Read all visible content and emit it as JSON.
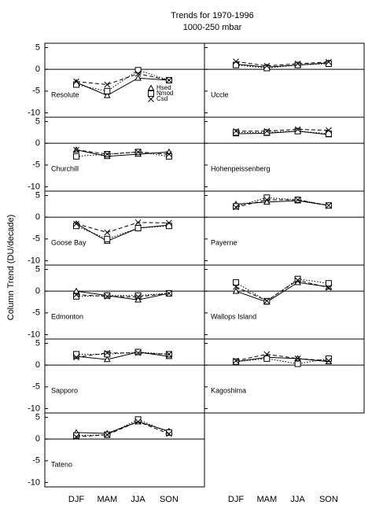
{
  "chart_data": {
    "type": "line",
    "title": "Trends for 1970-1996",
    "subtitle": "1000-250 mbar",
    "y_label": "Column Trend (DU/decade)",
    "categories": [
      "DJF",
      "MAM",
      "JJA",
      "SON"
    ],
    "ylim": [
      -11,
      6
    ],
    "yticks": [
      -10,
      -5,
      0,
      5
    ],
    "color": "#000000",
    "panels": [
      {
        "name": "Resolute",
        "series": [
          {
            "name": "Hsed",
            "values": [
              -3,
              -6,
              -2,
              -2.5
            ]
          },
          {
            "name": "Nmod",
            "values": [
              -3.5,
              -5,
              -0.2,
              -2.5
            ]
          },
          {
            "name": "Csd",
            "values": [
              -2.8,
              -3.5,
              -1,
              -2.5
            ]
          }
        ]
      },
      {
        "name": "Uccle",
        "series": [
          {
            "name": "Hsed",
            "values": [
              1.2,
              0.5,
              1,
              1.5
            ]
          },
          {
            "name": "Nmod",
            "values": [
              1,
              0.3,
              1,
              1.3
            ]
          },
          {
            "name": "Csd",
            "values": [
              1.8,
              0.8,
              1.3,
              1.7
            ]
          }
        ]
      },
      {
        "name": "Churchill",
        "series": [
          {
            "name": "Hsed",
            "values": [
              -1.5,
              -3,
              -2.5,
              -2
            ]
          },
          {
            "name": "Nmod",
            "values": [
              -3,
              -2.5,
              -2,
              -3
            ]
          },
          {
            "name": "Csd",
            "values": [
              -1.5,
              -2.5,
              -2,
              -2.5
            ]
          }
        ]
      },
      {
        "name": "Hohenpeissenberg",
        "series": [
          {
            "name": "Hsed",
            "values": [
              2.2,
              2.3,
              2.8,
              2
            ]
          },
          {
            "name": "Nmod",
            "values": [
              2.5,
              2.5,
              2.8,
              2.2
            ]
          },
          {
            "name": "Csd",
            "values": [
              2.8,
              2.8,
              3.2,
              3
            ]
          }
        ]
      },
      {
        "name": "Goose Bay",
        "series": [
          {
            "name": "Hsed",
            "values": [
              -1.5,
              -5.5,
              -2.5,
              -1.8
            ]
          },
          {
            "name": "Nmod",
            "values": [
              -2,
              -5,
              -2.5,
              -2
            ]
          },
          {
            "name": "Csd",
            "values": [
              -1.5,
              -3.5,
              -1.2,
              -1.3
            ]
          }
        ]
      },
      {
        "name": "Payerne",
        "series": [
          {
            "name": "Hsed",
            "values": [
              3,
              3.5,
              3.8,
              2.7
            ]
          },
          {
            "name": "Nmod",
            "values": [
              2.5,
              4.5,
              4,
              2.7
            ]
          },
          {
            "name": "Csd",
            "values": [
              2.3,
              4,
              4,
              2.7
            ]
          }
        ]
      },
      {
        "name": "Edmonton",
        "series": [
          {
            "name": "Hsed",
            "values": [
              0,
              -1,
              -2,
              -0.5
            ]
          },
          {
            "name": "Nmod",
            "values": [
              -1.2,
              -1,
              -1,
              -0.5
            ]
          },
          {
            "name": "Csd",
            "values": [
              -0.8,
              -1.2,
              -1.3,
              -0.5
            ]
          }
        ]
      },
      {
        "name": "Wallops Island",
        "series": [
          {
            "name": "Hsed",
            "values": [
              0,
              -2.5,
              2,
              1
            ]
          },
          {
            "name": "Nmod",
            "values": [
              2,
              -2.3,
              2.8,
              1.8
            ]
          },
          {
            "name": "Csd",
            "values": [
              1,
              -2.2,
              2.5,
              0.8
            ]
          }
        ]
      },
      {
        "name": "Sapporo",
        "series": [
          {
            "name": "Hsed",
            "values": [
              2,
              1.3,
              3,
              2
            ]
          },
          {
            "name": "Nmod",
            "values": [
              2.5,
              2.5,
              3,
              2.5
            ]
          },
          {
            "name": "Csd",
            "values": [
              1.8,
              2.8,
              2.8,
              2.5
            ]
          }
        ]
      },
      {
        "name": "Kagoshima",
        "series": [
          {
            "name": "Hsed",
            "values": [
              0.8,
              1.8,
              1.5,
              0.8
            ]
          },
          {
            "name": "Nmod",
            "values": [
              0.8,
              1.5,
              0.3,
              1.5
            ]
          },
          {
            "name": "Csd",
            "values": [
              1,
              2.5,
              1.5,
              1
            ]
          }
        ]
      },
      {
        "name": "Tateno",
        "series": [
          {
            "name": "Hsed",
            "values": [
              1.5,
              1.3,
              4,
              1.8
            ]
          },
          {
            "name": "Nmod",
            "values": [
              0.8,
              1,
              4.5,
              1.5
            ]
          },
          {
            "name": "Csd",
            "values": [
              0.5,
              1,
              4,
              1.2
            ]
          }
        ]
      }
    ]
  }
}
